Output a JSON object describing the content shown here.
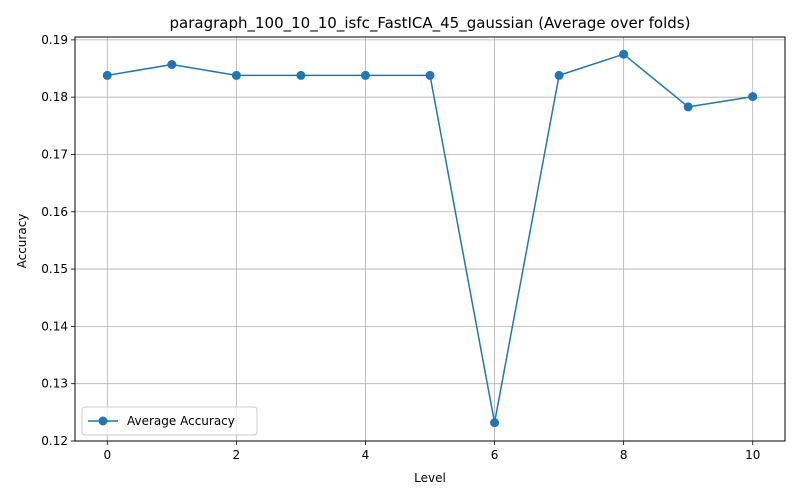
{
  "chart_data": {
    "type": "line",
    "title": "paragraph_100_10_10_isfc_FastICA_45_gaussian (Average over folds)",
    "xlabel": "Level",
    "ylabel": "Accuracy",
    "xlim": [
      -0.5,
      10.5
    ],
    "ylim": [
      0.12,
      0.1905
    ],
    "xticks": [
      0,
      2,
      4,
      6,
      8,
      10
    ],
    "xtick_labels": [
      "0",
      "2",
      "4",
      "6",
      "8",
      "10"
    ],
    "yticks": [
      0.12,
      0.13,
      0.14,
      0.15,
      0.16,
      0.17,
      0.18,
      0.19
    ],
    "ytick_labels": [
      "0.12",
      "0.13",
      "0.14",
      "0.15",
      "0.16",
      "0.17",
      "0.18",
      "0.19"
    ],
    "grid": true,
    "legend_position": "lower left",
    "colors": {
      "series": "#1f77b4",
      "grid": "#b0b0b0",
      "axes": "#000000"
    },
    "series": [
      {
        "name": "Average Accuracy",
        "marker": "circle",
        "x": [
          0,
          1,
          2,
          3,
          4,
          5,
          6,
          7,
          8,
          9,
          10
        ],
        "y": [
          0.1838,
          0.1857,
          0.1838,
          0.1838,
          0.1838,
          0.1838,
          0.1232,
          0.1838,
          0.1875,
          0.1783,
          0.1801
        ]
      }
    ]
  }
}
